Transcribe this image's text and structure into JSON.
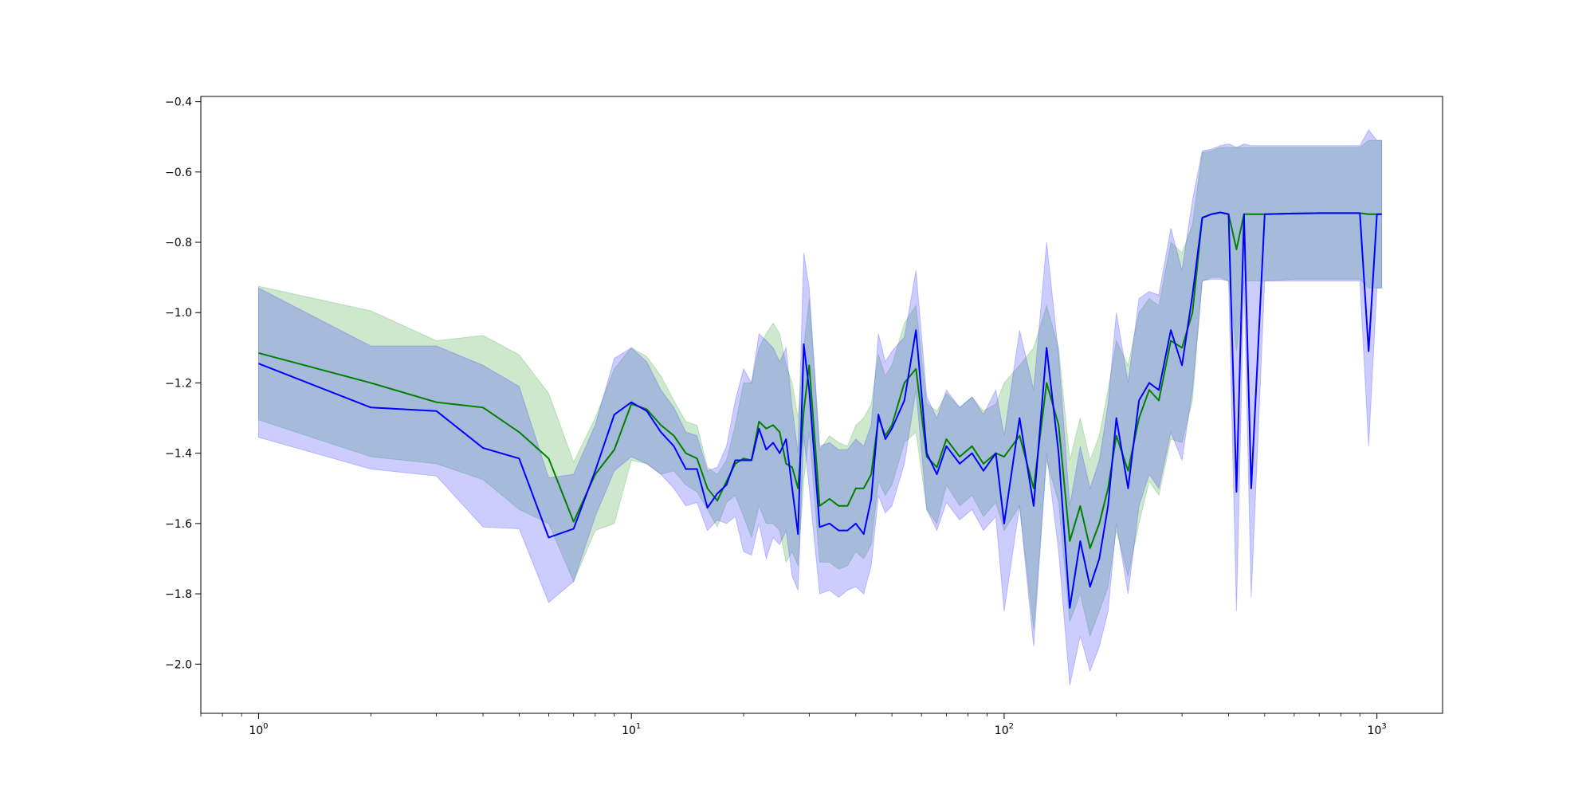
{
  "chart_data": {
    "type": "line",
    "title": "",
    "xlabel": "",
    "ylabel": "",
    "xscale": "log",
    "xlim": [
      0.7,
      1500
    ],
    "ylim": [
      -2.14,
      -0.385
    ],
    "grid": false,
    "legend": "none",
    "x_ticks": [
      {
        "value": 1,
        "base": "10",
        "exp": "0"
      },
      {
        "value": 10,
        "base": "10",
        "exp": "1"
      },
      {
        "value": 100,
        "base": "10",
        "exp": "2"
      },
      {
        "value": 1000,
        "base": "10",
        "exp": "3"
      }
    ],
    "y_ticks": [
      {
        "value": -0.4,
        "label": "−0.4"
      },
      {
        "value": -0.6,
        "label": "−0.6"
      },
      {
        "value": -0.8,
        "label": "−0.8"
      },
      {
        "value": -1.0,
        "label": "−1.0"
      },
      {
        "value": -1.2,
        "label": "−1.2"
      },
      {
        "value": -1.4,
        "label": "−1.4"
      },
      {
        "value": -1.6,
        "label": "−1.6"
      },
      {
        "value": -1.8,
        "label": "−1.8"
      },
      {
        "value": -2.0,
        "label": "−2.0"
      }
    ],
    "series": [
      {
        "color": "#008000",
        "band_color": "#2ca02c",
        "band_opacity": 0.24,
        "x": [
          1,
          2,
          3,
          4,
          5,
          6,
          7,
          8,
          9,
          10,
          11,
          12,
          13,
          14,
          15,
          16,
          17,
          18,
          19,
          20,
          21,
          22,
          23,
          24,
          25,
          26,
          27,
          28,
          29,
          30,
          32,
          34,
          36,
          38,
          40,
          42,
          44,
          46,
          48,
          50,
          54,
          58,
          62,
          66,
          70,
          76,
          82,
          88,
          95,
          100,
          110,
          120,
          130,
          140,
          150,
          160,
          170,
          180,
          190,
          200,
          215,
          230,
          245,
          260,
          280,
          300,
          320,
          340,
          360,
          380,
          400,
          420,
          440,
          460,
          500,
          600,
          700,
          800,
          900,
          950,
          1000,
          1030
        ],
        "y": [
          -1.115,
          -1.2,
          -1.255,
          -1.27,
          -1.34,
          -1.415,
          -1.595,
          -1.46,
          -1.39,
          -1.26,
          -1.275,
          -1.32,
          -1.35,
          -1.4,
          -1.415,
          -1.5,
          -1.535,
          -1.48,
          -1.43,
          -1.415,
          -1.42,
          -1.31,
          -1.33,
          -1.32,
          -1.34,
          -1.43,
          -1.44,
          -1.5,
          -1.28,
          -1.15,
          -1.55,
          -1.53,
          -1.55,
          -1.55,
          -1.5,
          -1.5,
          -1.46,
          -1.3,
          -1.35,
          -1.32,
          -1.2,
          -1.16,
          -1.41,
          -1.44,
          -1.36,
          -1.41,
          -1.38,
          -1.43,
          -1.4,
          -1.41,
          -1.35,
          -1.5,
          -1.2,
          -1.32,
          -1.65,
          -1.55,
          -1.67,
          -1.6,
          -1.5,
          -1.35,
          -1.45,
          -1.3,
          -1.22,
          -1.25,
          -1.08,
          -1.1,
          -1.0,
          -0.73,
          -0.72,
          -0.715,
          -0.72,
          -0.82,
          -0.72,
          -0.72,
          -0.72,
          -0.718,
          -0.717,
          -0.717,
          -0.717,
          -0.72,
          -0.72,
          -0.72
        ],
        "upper": [
          -0.925,
          -0.995,
          -1.08,
          -1.065,
          -1.12,
          -1.23,
          -1.425,
          -1.3,
          -1.16,
          -1.1,
          -1.125,
          -1.18,
          -1.25,
          -1.31,
          -1.32,
          -1.44,
          -1.46,
          -1.42,
          -1.32,
          -1.2,
          -1.2,
          -1.1,
          -1.06,
          -1.03,
          -1.06,
          -1.15,
          -1.2,
          -1.3,
          -1.1,
          -0.96,
          -1.39,
          -1.35,
          -1.37,
          -1.38,
          -1.32,
          -1.3,
          -1.26,
          -1.12,
          -1.18,
          -1.15,
          -1.03,
          -0.98,
          -1.26,
          -1.28,
          -1.23,
          -1.27,
          -1.24,
          -1.28,
          -1.26,
          -1.2,
          -1.15,
          -1.1,
          -0.98,
          -1.1,
          -1.42,
          -1.3,
          -1.42,
          -1.35,
          -1.22,
          -1.08,
          -1.15,
          -1.0,
          -0.96,
          -0.98,
          -0.8,
          -0.83,
          -0.75,
          -0.545,
          -0.54,
          -0.53,
          -0.53,
          -0.53,
          -0.53,
          -0.53,
          -0.53,
          -0.53,
          -0.53,
          -0.53,
          -0.53,
          -0.51,
          -0.51,
          -0.51
        ],
        "lower": [
          -1.305,
          -1.41,
          -1.43,
          -1.475,
          -1.56,
          -1.6,
          -1.765,
          -1.62,
          -1.6,
          -1.42,
          -1.43,
          -1.46,
          -1.45,
          -1.49,
          -1.51,
          -1.56,
          -1.61,
          -1.54,
          -1.52,
          -1.58,
          -1.64,
          -1.55,
          -1.6,
          -1.6,
          -1.62,
          -1.71,
          -1.68,
          -1.72,
          -1.48,
          -1.34,
          -1.71,
          -1.71,
          -1.73,
          -1.72,
          -1.68,
          -1.7,
          -1.66,
          -1.48,
          -1.52,
          -1.49,
          -1.37,
          -1.34,
          -1.56,
          -1.6,
          -1.49,
          -1.55,
          -1.52,
          -1.58,
          -1.54,
          -1.62,
          -1.55,
          -1.9,
          -1.42,
          -1.54,
          -1.88,
          -1.8,
          -1.92,
          -1.85,
          -1.78,
          -1.62,
          -1.75,
          -1.6,
          -1.48,
          -1.52,
          -1.36,
          -1.37,
          -1.25,
          -0.91,
          -0.9,
          -0.9,
          -0.91,
          -1.11,
          -0.91,
          -0.91,
          -0.91,
          -0.905,
          -0.905,
          -0.905,
          -0.905,
          -0.93,
          -0.93,
          -0.93
        ]
      },
      {
        "color": "#0000ff",
        "band_color": "#3333ff",
        "band_opacity": 0.25,
        "x": [
          1,
          2,
          3,
          4,
          5,
          6,
          7,
          8,
          9,
          10,
          11,
          12,
          13,
          14,
          15,
          16,
          17,
          18,
          19,
          20,
          21,
          22,
          23,
          24,
          25,
          26,
          27,
          28,
          29,
          30,
          32,
          34,
          36,
          38,
          40,
          42,
          44,
          46,
          48,
          50,
          54,
          58,
          62,
          66,
          70,
          76,
          82,
          88,
          95,
          100,
          110,
          120,
          130,
          140,
          150,
          160,
          170,
          180,
          190,
          200,
          215,
          230,
          245,
          260,
          280,
          300,
          320,
          340,
          360,
          380,
          400,
          420,
          440,
          460,
          500,
          600,
          700,
          800,
          900,
          950,
          1000,
          1030
        ],
        "y": [
          -1.145,
          -1.27,
          -1.28,
          -1.385,
          -1.415,
          -1.64,
          -1.615,
          -1.45,
          -1.29,
          -1.255,
          -1.28,
          -1.34,
          -1.38,
          -1.445,
          -1.445,
          -1.555,
          -1.515,
          -1.49,
          -1.42,
          -1.42,
          -1.42,
          -1.33,
          -1.39,
          -1.37,
          -1.4,
          -1.36,
          -1.5,
          -1.63,
          -1.09,
          -1.22,
          -1.61,
          -1.6,
          -1.62,
          -1.62,
          -1.6,
          -1.63,
          -1.53,
          -1.29,
          -1.36,
          -1.33,
          -1.25,
          -1.05,
          -1.4,
          -1.46,
          -1.38,
          -1.43,
          -1.4,
          -1.45,
          -1.4,
          -1.6,
          -1.3,
          -1.55,
          -1.1,
          -1.4,
          -1.84,
          -1.65,
          -1.78,
          -1.7,
          -1.55,
          -1.3,
          -1.5,
          -1.25,
          -1.2,
          -1.22,
          -1.05,
          -1.15,
          -0.95,
          -0.73,
          -0.72,
          -0.715,
          -0.72,
          -1.51,
          -0.72,
          -1.5,
          -0.72,
          -0.718,
          -0.717,
          -0.717,
          -0.717,
          -1.11,
          -0.72,
          -0.72
        ],
        "upper": [
          -0.93,
          -1.095,
          -1.095,
          -1.15,
          -1.21,
          -1.47,
          -1.46,
          -1.32,
          -1.13,
          -1.1,
          -1.14,
          -1.22,
          -1.27,
          -1.34,
          -1.35,
          -1.45,
          -1.44,
          -1.38,
          -1.25,
          -1.16,
          -1.2,
          -1.06,
          -1.08,
          -1.1,
          -1.14,
          -1.1,
          -1.27,
          -1.4,
          -0.83,
          -0.93,
          -1.38,
          -1.37,
          -1.39,
          -1.39,
          -1.36,
          -1.38,
          -1.32,
          -1.06,
          -1.14,
          -1.11,
          -1.07,
          -0.88,
          -1.24,
          -1.3,
          -1.22,
          -1.27,
          -1.24,
          -1.29,
          -1.22,
          -1.35,
          -1.05,
          -1.22,
          -0.8,
          -1.12,
          -1.55,
          -1.38,
          -1.5,
          -1.42,
          -1.26,
          -1.0,
          -1.2,
          -0.96,
          -0.94,
          -0.95,
          -0.76,
          -0.88,
          -0.68,
          -0.54,
          -0.535,
          -0.525,
          -0.52,
          -0.53,
          -0.52,
          -0.525,
          -0.525,
          -0.525,
          -0.525,
          -0.525,
          -0.525,
          -0.48,
          -0.51,
          -0.51
        ],
        "lower": [
          -1.355,
          -1.445,
          -1.465,
          -1.61,
          -1.615,
          -1.825,
          -1.765,
          -1.58,
          -1.45,
          -1.41,
          -1.43,
          -1.46,
          -1.5,
          -1.55,
          -1.54,
          -1.62,
          -1.59,
          -1.6,
          -1.58,
          -1.68,
          -1.69,
          -1.6,
          -1.7,
          -1.64,
          -1.66,
          -1.62,
          -1.75,
          -1.79,
          -1.35,
          -1.5,
          -1.8,
          -1.79,
          -1.81,
          -1.79,
          -1.78,
          -1.8,
          -1.72,
          -1.52,
          -1.57,
          -1.55,
          -1.43,
          -1.22,
          -1.56,
          -1.62,
          -1.54,
          -1.59,
          -1.56,
          -1.62,
          -1.58,
          -1.85,
          -1.55,
          -1.95,
          -1.4,
          -1.68,
          -2.06,
          -1.92,
          -2.02,
          -1.95,
          -1.85,
          -1.6,
          -1.8,
          -1.55,
          -1.46,
          -1.5,
          -1.34,
          -1.42,
          -1.22,
          -0.91,
          -0.905,
          -0.905,
          -0.91,
          -1.85,
          -0.91,
          -1.81,
          -0.91,
          -0.91,
          -0.91,
          -0.91,
          -0.91,
          -1.38,
          -0.93,
          -0.93
        ]
      }
    ]
  }
}
